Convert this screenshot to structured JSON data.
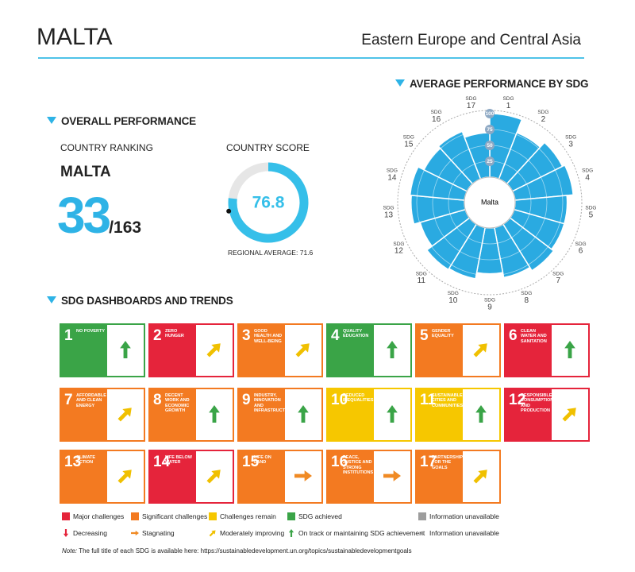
{
  "header": {
    "title": "MALTA",
    "region": "Eastern Europe and Central Asia"
  },
  "overall": {
    "title": "OVERALL PERFORMANCE",
    "ranking_label": "COUNTRY RANKING",
    "country": "MALTA",
    "rank": 33,
    "rank_total": "/163"
  },
  "chart_data": [
    {
      "type": "polar_bar",
      "title": "AVERAGE PERFORMANCE BY SDG",
      "center_label": "Malta",
      "category_prefix": "SDG",
      "categories": [
        "1",
        "2",
        "3",
        "4",
        "5",
        "6",
        "7",
        "8",
        "9",
        "10",
        "11",
        "12",
        "13",
        "14",
        "15",
        "16",
        "17"
      ],
      "values": [
        100,
        78,
        88,
        92,
        82,
        82,
        86,
        80,
        72,
        82,
        84,
        74,
        84,
        86,
        76,
        80,
        70
      ],
      "rlim": [
        0,
        100
      ],
      "rticks": [
        25,
        50,
        75,
        100
      ],
      "color": "#2aaae1"
    },
    {
      "type": "gauge",
      "title": "COUNTRY SCORE",
      "value": 76.8,
      "reference_label": "REGIONAL AVERAGE:",
      "reference": 71.6,
      "lim": [
        0,
        100
      ],
      "color": "#35bfe9",
      "track_color": "#e6e6e6"
    }
  ],
  "dashboard": {
    "title": "SDG DASHBOARDS AND TRENDS",
    "goals": [
      {
        "number": 1,
        "title": "NO POVERTY",
        "color": "#3aa447",
        "trend": "on_track"
      },
      {
        "number": 2,
        "title": "ZERO HUNGER",
        "color": "#e5243b",
        "trend": "moderately_improving"
      },
      {
        "number": 3,
        "title": "GOOD HEALTH AND WELL-BEING",
        "color": "#f37a21",
        "trend": "moderately_improving"
      },
      {
        "number": 4,
        "title": "QUALITY EDUCATION",
        "color": "#3aa447",
        "trend": "on_track"
      },
      {
        "number": 5,
        "title": "GENDER EQUALITY",
        "color": "#f37a21",
        "trend": "moderately_improving"
      },
      {
        "number": 6,
        "title": "CLEAN WATER AND SANITATION",
        "color": "#e5243b",
        "trend": "on_track"
      },
      {
        "number": 7,
        "title": "AFFORDABLE AND CLEAN ENERGY",
        "color": "#f37a21",
        "trend": "moderately_improving"
      },
      {
        "number": 8,
        "title": "DECENT WORK AND ECONOMIC GROWTH",
        "color": "#f37a21",
        "trend": "on_track"
      },
      {
        "number": 9,
        "title": "INDUSTRY, INNOVATION AND INFRASTRUCTURE",
        "color": "#f37a21",
        "trend": "on_track"
      },
      {
        "number": 10,
        "title": "REDUCED INEQUALITIES",
        "color": "#f6c700",
        "trend": "on_track"
      },
      {
        "number": 11,
        "title": "SUSTAINABLE CITIES AND COMMUNITIES",
        "color": "#f6c700",
        "trend": "on_track"
      },
      {
        "number": 12,
        "title": "RESPONSIBLE CONSUMPTION AND PRODUCTION",
        "color": "#e5243b",
        "trend": "moderately_improving"
      },
      {
        "number": 13,
        "title": "CLIMATE ACTION",
        "color": "#f37a21",
        "trend": "moderately_improving"
      },
      {
        "number": 14,
        "title": "LIFE BELOW WATER",
        "color": "#e5243b",
        "trend": "moderately_improving"
      },
      {
        "number": 15,
        "title": "LIFE ON LAND",
        "color": "#f37a21",
        "trend": "stagnating"
      },
      {
        "number": 16,
        "title": "PEACE, JUSTICE AND STRONG INSTITUTIONS",
        "color": "#f37a21",
        "trend": "stagnating"
      },
      {
        "number": 17,
        "title": "PARTNERSHIPS FOR THE GOALS",
        "color": "#f37a21",
        "trend": "moderately_improving"
      }
    ]
  },
  "legend": {
    "ratings": [
      {
        "label": "Major challenges",
        "color": "#e5243b"
      },
      {
        "label": "Significant challenges",
        "color": "#f37a21"
      },
      {
        "label": "Challenges remain",
        "color": "#f6c700"
      },
      {
        "label": "SDG achieved",
        "color": "#3aa447"
      },
      {
        "label": "Information unavailable",
        "color": "#9d9d9d"
      }
    ],
    "trends": [
      {
        "label": "Decreasing",
        "trend": "decreasing"
      },
      {
        "label": "Stagnating",
        "trend": "stagnating"
      },
      {
        "label": "Moderately improving",
        "trend": "moderately_improving"
      },
      {
        "label": "On track or maintaining SDG achievement",
        "trend": "on_track"
      },
      {
        "label": "Information unavailable",
        "trend": "unavailable"
      }
    ]
  },
  "note": {
    "prefix": "Note:",
    "text": "The full title of each SDG is available here: https://sustainabledevelopment.un.org/topics/sustainabledevelopmentgoals"
  }
}
